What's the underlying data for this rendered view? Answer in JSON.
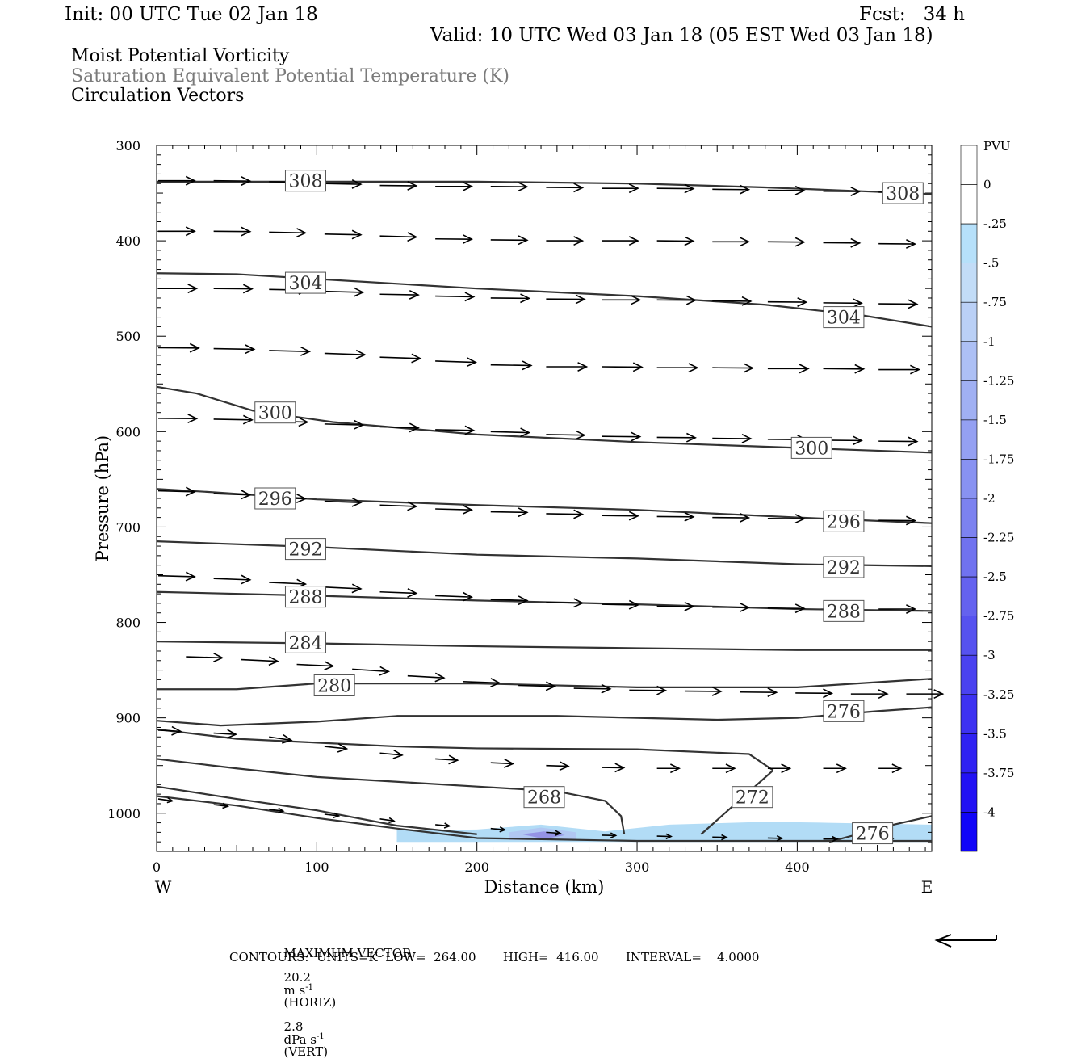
{
  "header": {
    "init": "Init: 00 UTC Tue 02 Jan 18",
    "fcst": "Fcst:   34 h",
    "valid": "Valid: 10 UTC Wed 03 Jan 18 (05 EST Wed 03 Jan 18)",
    "field1": "Moist Potential Vorticity",
    "field2": "Saturation Equivalent Potential Temperature (K)",
    "field3": "Circulation Vectors"
  },
  "footer": {
    "max_vector_label": "MAXIMUM VECTOR:",
    "max_h_value": "20.2",
    "max_h_unit": "m s",
    "max_h_exp": "-1",
    "max_h_tag": "(HORIZ)",
    "max_v_value": "2.8",
    "max_v_unit": "dPa s",
    "max_v_exp": "-1",
    "max_v_tag": "(VERT)",
    "contours_line": "CONTOURS:  UNITS=K  LOW=  264.00       HIGH=  416.00       INTERVAL=    4.0000"
  },
  "colors": {
    "contour": "#333333",
    "vector": "#000000",
    "pv_light": "#aad8f5",
    "pv_mid": "#b0c4f2",
    "pv_dark": "#8f86e0"
  },
  "chart_data": {
    "type": "cross-section",
    "xlabel": "Distance (km)",
    "ylabel": "Pressure (hPa)",
    "xlim": [
      0,
      484
    ],
    "ylim": [
      300,
      1040
    ],
    "y_inverted": true,
    "x_ticks": [
      0,
      100,
      200,
      300,
      400
    ],
    "y_ticks": [
      300,
      400,
      500,
      600,
      700,
      800,
      900,
      1000
    ],
    "x_end_labels": {
      "left": "W",
      "right": "E"
    },
    "colorbar": {
      "title": "PVU",
      "labels": [
        "0",
        "-.25",
        "-.5",
        "-.75",
        "-1",
        "-1.25",
        "-1.5",
        "-1.75",
        "-2",
        "-2.25",
        "-2.5",
        "-2.75",
        "-3",
        "-3.25",
        "-3.5",
        "-3.75",
        "-4"
      ],
      "colors": [
        "#ffffff",
        "#ffffff",
        "#b6e0fa",
        "#c2dcf7",
        "#bad0f6",
        "#adc0f5",
        "#a0b0f3",
        "#94a0f2",
        "#8892f1",
        "#7c82f0",
        "#7072ef",
        "#6462ef",
        "#5652ef",
        "#4a42f0",
        "#3d32f1",
        "#2f22f2",
        "#2212f4",
        "#1004f8"
      ]
    },
    "contours": [
      {
        "label": "308",
        "points": [
          [
            0,
            338
          ],
          [
            100,
            338
          ],
          [
            200,
            338
          ],
          [
            300,
            340
          ],
          [
            380,
            344
          ],
          [
            484,
            351
          ]
        ],
        "labels_at": [
          [
            93,
            337
          ],
          [
            466,
            350
          ]
        ]
      },
      {
        "label": "304",
        "points": [
          [
            0,
            434
          ],
          [
            50,
            435
          ],
          [
            100,
            440
          ],
          [
            200,
            450
          ],
          [
            300,
            458
          ],
          [
            380,
            467
          ],
          [
            440,
            478
          ],
          [
            484,
            490
          ]
        ],
        "labels_at": [
          [
            93,
            444
          ],
          [
            429,
            480
          ]
        ]
      },
      {
        "label": "300",
        "points": [
          [
            0,
            553
          ],
          [
            25,
            560
          ],
          [
            60,
            578
          ],
          [
            110,
            590
          ],
          [
            200,
            603
          ],
          [
            300,
            611
          ],
          [
            400,
            617
          ],
          [
            484,
            622
          ]
        ],
        "labels_at": [
          [
            74,
            580
          ],
          [
            409,
            617
          ]
        ]
      },
      {
        "label": "296",
        "points": [
          [
            0,
            660
          ],
          [
            40,
            664
          ],
          [
            100,
            671
          ],
          [
            200,
            677
          ],
          [
            300,
            682
          ],
          [
            400,
            690
          ],
          [
            484,
            696
          ]
        ],
        "labels_at": [
          [
            74,
            670
          ],
          [
            429,
            694
          ]
        ]
      },
      {
        "label": "292",
        "points": [
          [
            0,
            715
          ],
          [
            100,
            721
          ],
          [
            200,
            729
          ],
          [
            300,
            733
          ],
          [
            400,
            739
          ],
          [
            484,
            741
          ]
        ],
        "labels_at": [
          [
            93,
            723
          ],
          [
            429,
            742
          ]
        ]
      },
      {
        "label": "288",
        "points": [
          [
            0,
            768
          ],
          [
            100,
            772
          ],
          [
            200,
            777
          ],
          [
            300,
            781
          ],
          [
            400,
            786
          ],
          [
            484,
            788
          ]
        ],
        "labels_at": [
          [
            93,
            773
          ],
          [
            429,
            788
          ]
        ]
      },
      {
        "label": "284",
        "points": [
          [
            0,
            820
          ],
          [
            100,
            822
          ],
          [
            200,
            825
          ],
          [
            300,
            827
          ],
          [
            400,
            829
          ],
          [
            484,
            829
          ]
        ],
        "labels_at": [
          [
            93,
            821
          ]
        ]
      },
      {
        "label": "280",
        "points": [
          [
            0,
            870
          ],
          [
            50,
            870
          ],
          [
            100,
            864
          ],
          [
            200,
            864
          ],
          [
            300,
            868
          ],
          [
            400,
            868
          ],
          [
            484,
            859
          ]
        ],
        "labels_at": [
          [
            111,
            866
          ]
        ]
      },
      {
        "label": "276",
        "points": [
          [
            0,
            903
          ],
          [
            40,
            908
          ],
          [
            100,
            904
          ],
          [
            150,
            898
          ],
          [
            250,
            898
          ],
          [
            350,
            902
          ],
          [
            400,
            900
          ],
          [
            450,
            893
          ],
          [
            484,
            889
          ]
        ],
        "labels_at": [
          [
            429,
            893
          ]
        ]
      },
      {
        "label": "",
        "points": [
          [
            0,
            912
          ],
          [
            50,
            922
          ],
          [
            100,
            926
          ],
          [
            150,
            930
          ],
          [
            200,
            932
          ],
          [
            300,
            933
          ],
          [
            370,
            938
          ],
          [
            385,
            955
          ]
        ],
        "labels_at": []
      },
      {
        "label": "",
        "points": [
          [
            0,
            943
          ],
          [
            50,
            953
          ],
          [
            100,
            962
          ],
          [
            150,
            967
          ],
          [
            200,
            972
          ],
          [
            250,
            977
          ],
          [
            280,
            987
          ],
          [
            290,
            1003
          ],
          [
            292,
            1022
          ]
        ],
        "labels_at": []
      },
      {
        "label": "268",
        "points": [
          [
            0,
            972
          ],
          [
            50,
            985
          ],
          [
            100,
            997
          ],
          [
            150,
            1013
          ],
          [
            200,
            1022
          ]
        ],
        "labels_at": [
          [
            242,
            983
          ]
        ]
      },
      {
        "label": "",
        "points": [
          [
            0,
            982
          ],
          [
            50,
            992
          ],
          [
            100,
            1005
          ],
          [
            150,
            1016
          ],
          [
            200,
            1026
          ],
          [
            300,
            1029
          ],
          [
            484,
            1029
          ]
        ],
        "labels_at": []
      },
      {
        "label": "272",
        "points": [
          [
            385,
            955
          ],
          [
            340,
            1022
          ]
        ],
        "labels_at": [
          [
            372,
            983
          ]
        ]
      },
      {
        "label": "276",
        "points": [
          [
            420,
            1030
          ],
          [
            440,
            1021
          ],
          [
            460,
            1012
          ],
          [
            484,
            1003
          ]
        ],
        "labels_at": [
          [
            447,
            1021
          ]
        ]
      }
    ],
    "vector_rows": [
      {
        "p": [
          337,
          337,
          338,
          340,
          342,
          343,
          343,
          344,
          345,
          345,
          346,
          347,
          348,
          349,
          350
        ],
        "len": 0.9
      },
      {
        "p": [
          390,
          390,
          391,
          393,
          395,
          398,
          399,
          400,
          400,
          400,
          401,
          401,
          402,
          403,
          404
        ],
        "len": 0.9
      },
      {
        "p": [
          450,
          450,
          451,
          453,
          456,
          458,
          460,
          461,
          462,
          462,
          463,
          464,
          465,
          466,
          467
        ],
        "len": 0.95
      },
      {
        "p": [
          512,
          513,
          515,
          518,
          522,
          526,
          530,
          532,
          532,
          533,
          533,
          534,
          534,
          535,
          535
        ],
        "len": 1.0
      },
      {
        "p": [
          586,
          587,
          589,
          592,
          595,
          598,
          600,
          603,
          605,
          606,
          607,
          608,
          609,
          610,
          611
        ],
        "len": 0.95
      },
      {
        "p": [
          662,
          665,
          669,
          673,
          677,
          681,
          684,
          686,
          688,
          689,
          690,
          691,
          692,
          693,
          694
        ],
        "len": 0.9
      },
      {
        "p": [
          751,
          754,
          758,
          763,
          768,
          772,
          776,
          779,
          781,
          783,
          784,
          785,
          786,
          786,
          786
        ],
        "len": 0.9
      },
      {
        "p": [
          836,
          839,
          844,
          849,
          856,
          862,
          866,
          869,
          871,
          872,
          873,
          874,
          875,
          875,
          875
        ],
        "len": 0.9,
        "x_off": 0.5
      },
      {
        "p": [
          913,
          916,
          920,
          930,
          937,
          943,
          947,
          950,
          952,
          953,
          953,
          953,
          953,
          953,
          953
        ],
        "len": 0.55
      },
      {
        "p": [
          985,
          991,
          996,
          1001,
          1006,
          1012,
          1016,
          1020,
          1023,
          1024,
          1025,
          1026,
          1027,
          1027,
          1027
        ],
        "len": 0.35
      }
    ]
  }
}
